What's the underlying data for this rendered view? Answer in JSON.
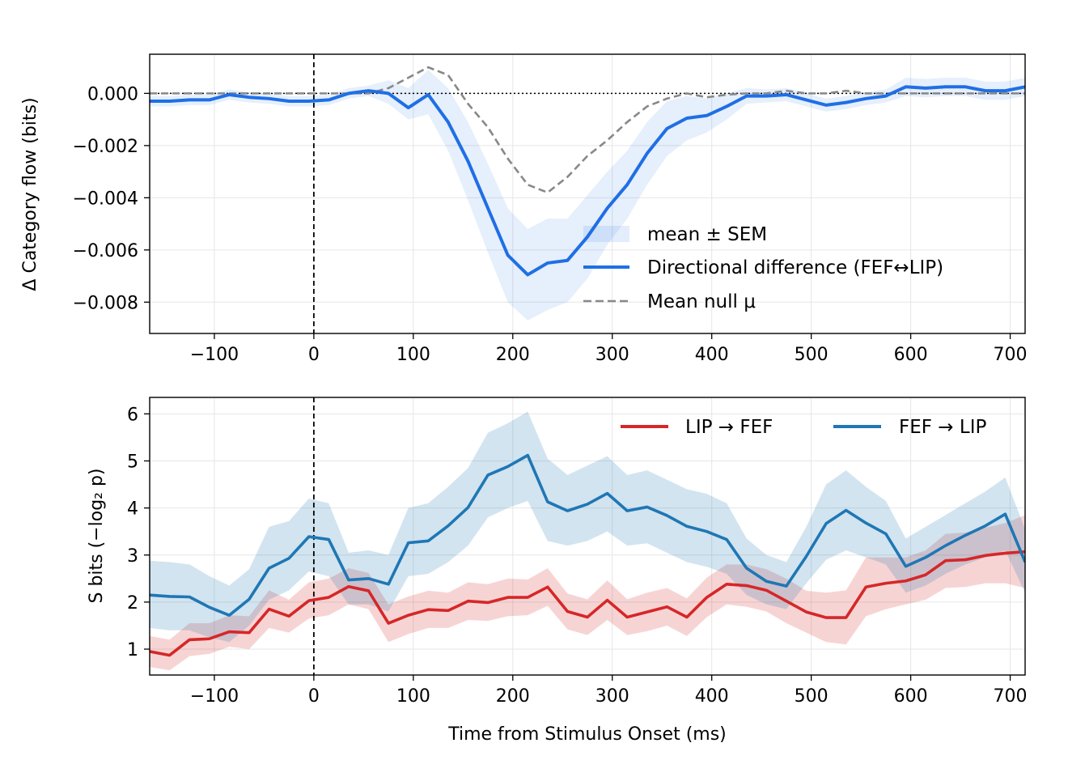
{
  "chart_data": [
    {
      "type": "line",
      "panel": "top",
      "title": "",
      "xlabel": "",
      "ylabel": "Δ Category flow (bits)",
      "xlim": [
        -165,
        715
      ],
      "ylim": [
        -0.0092,
        0.0015
      ],
      "xticks": [
        -100,
        0,
        100,
        200,
        300,
        400,
        500,
        600,
        700
      ],
      "xtick_labels": [
        "−100",
        "0",
        "100",
        "200",
        "300",
        "400",
        "500",
        "600",
        "700"
      ],
      "yticks": [
        0.0,
        -0.002,
        -0.004,
        -0.006,
        -0.008
      ],
      "ytick_labels": [
        "0.000",
        "−0.002",
        "−0.004",
        "−0.006",
        "−0.008"
      ],
      "grid": true,
      "legend_position": "lower-right",
      "legend": [
        "mean ± SEM",
        "Directional difference (FEF↔LIP)",
        "Mean null μ"
      ],
      "reference_lines": {
        "vertical_x": 0,
        "horizontal_y": 0
      },
      "x": [
        -165,
        -145,
        -125,
        -105,
        -85,
        -65,
        -45,
        -25,
        -5,
        15,
        35,
        55,
        75,
        95,
        115,
        135,
        155,
        175,
        195,
        215,
        235,
        255,
        275,
        295,
        315,
        335,
        355,
        375,
        395,
        415,
        435,
        455,
        475,
        495,
        515,
        535,
        555,
        575,
        595,
        615,
        635,
        655,
        675,
        695,
        715
      ],
      "series": [
        {
          "name": "Directional difference (FEF↔LIP)",
          "color": "#1f6fe5",
          "values": [
            -0.0003,
            -0.0003,
            -0.00025,
            -0.00025,
            -5e-05,
            -0.00015,
            -0.0002,
            -0.0003,
            -0.0003,
            -0.00025,
            0.0,
            0.0001,
            0.0,
            -0.00055,
            -5e-05,
            -0.0011,
            -0.0026,
            -0.0044,
            -0.0062,
            -0.00695,
            -0.0065,
            -0.0064,
            -0.0055,
            -0.0044,
            -0.0035,
            -0.0023,
            -0.00135,
            -0.00095,
            -0.00085,
            -0.0005,
            -0.0001,
            -0.0001,
            -5e-05,
            -0.00025,
            -0.00045,
            -0.00035,
            -0.0002,
            -0.0001,
            0.00025,
            0.0002,
            0.00025,
            0.00025,
            0.0001,
            0.0001,
            0.00025
          ],
          "sem_lower": [
            -0.0005,
            -0.0005,
            -0.00045,
            -0.00045,
            -0.00025,
            -0.00035,
            -0.0004,
            -0.0005,
            -0.0005,
            -0.00045,
            -0.0002,
            -0.0001,
            -0.0004,
            -0.001,
            -0.0008,
            -0.0022,
            -0.0041,
            -0.0061,
            -0.008,
            -0.0087,
            -0.0083,
            -0.008,
            -0.0071,
            -0.0058,
            -0.0048,
            -0.0035,
            -0.0024,
            -0.0018,
            -0.0015,
            -0.001,
            -0.0004,
            -0.00035,
            -0.0003,
            -0.0005,
            -0.0007,
            -0.0006,
            -0.00045,
            -0.00035,
            -0.0001,
            -0.00015,
            -0.0001,
            -0.0001,
            -0.00025,
            -0.00025,
            -0.0001
          ],
          "sem_upper": [
            -0.0001,
            -0.0001,
            -5e-05,
            -5e-05,
            0.00015,
            5e-05,
            0.0,
            -0.0001,
            -0.0001,
            -5e-05,
            0.0002,
            0.0003,
            0.0005,
            0.0002,
            0.0009,
            0.0002,
            -0.0011,
            -0.0027,
            -0.0044,
            -0.0052,
            -0.0048,
            -0.0048,
            -0.0039,
            -0.003,
            -0.0022,
            -0.0011,
            -0.0003,
            -0.0001,
            -0.0002,
            0.0,
            0.0002,
            0.00015,
            0.0002,
            0.0,
            -0.0002,
            -0.0001,
            5e-05,
            0.00015,
            0.0006,
            0.00055,
            0.0006,
            0.0006,
            0.00045,
            0.00045,
            0.0006
          ]
        },
        {
          "name": "Mean null μ",
          "color": "#888888",
          "dashed": true,
          "values": [
            0.0,
            0.0,
            0.0,
            0.0,
            0.0,
            0.0,
            0.0,
            0.0,
            0.0,
            0.0,
            0.0,
            0.0,
            0.0002,
            0.0006,
            0.001,
            0.0007,
            -0.0004,
            -0.0013,
            -0.0025,
            -0.0035,
            -0.0038,
            -0.0032,
            -0.0024,
            -0.0018,
            -0.0011,
            -0.0005,
            -0.0002,
            0.0,
            -0.00015,
            -5e-05,
            0.0,
            0.0,
            0.0001,
            0.0,
            0.0,
            0.0001,
            0.0,
            0.0,
            0.0,
            0.0,
            0.0,
            0.0,
            0.0,
            0.0,
            0.0
          ]
        }
      ]
    },
    {
      "type": "line",
      "panel": "bottom",
      "title": "",
      "xlabel": "Time from Stimulus Onset (ms)",
      "ylabel": "S bits (−log₂ p)",
      "xlim": [
        -165,
        715
      ],
      "ylim": [
        0.45,
        6.35
      ],
      "xticks": [
        -100,
        0,
        100,
        200,
        300,
        400,
        500,
        600,
        700
      ],
      "xtick_labels": [
        "−100",
        "0",
        "100",
        "200",
        "300",
        "400",
        "500",
        "600",
        "700"
      ],
      "yticks": [
        1,
        2,
        3,
        4,
        5,
        6
      ],
      "ytick_labels": [
        "1",
        "2",
        "3",
        "4",
        "5",
        "6"
      ],
      "grid": true,
      "legend_position": "upper-right",
      "legend": [
        "LIP → FEF",
        "FEF → LIP"
      ],
      "reference_lines": {
        "vertical_x": 0
      },
      "x": [
        -165,
        -145,
        -125,
        -105,
        -85,
        -65,
        -45,
        -25,
        -5,
        15,
        35,
        55,
        75,
        95,
        115,
        135,
        155,
        175,
        195,
        215,
        235,
        255,
        275,
        295,
        315,
        335,
        355,
        375,
        395,
        415,
        435,
        455,
        475,
        495,
        515,
        535,
        555,
        575,
        595,
        615,
        635,
        655,
        675,
        695,
        715
      ],
      "series": [
        {
          "name": "LIP → FEF",
          "color": "#d62728",
          "values": [
            0.95,
            0.87,
            1.2,
            1.22,
            1.37,
            1.35,
            1.85,
            1.7,
            2.03,
            2.1,
            2.33,
            2.24,
            1.55,
            1.72,
            1.84,
            1.82,
            2.02,
            1.99,
            2.1,
            2.1,
            2.32,
            1.8,
            1.68,
            2.04,
            1.68,
            1.79,
            1.9,
            1.68,
            2.1,
            2.38,
            2.35,
            2.25,
            2.02,
            1.79,
            1.67,
            1.67,
            2.32,
            2.4,
            2.45,
            2.58,
            2.88,
            2.9,
            2.99,
            3.04,
            3.07
          ],
          "sem_lower": [
            0.62,
            0.55,
            0.85,
            0.9,
            1.05,
            1.0,
            1.45,
            1.35,
            1.65,
            1.72,
            1.95,
            1.85,
            1.15,
            1.32,
            1.45,
            1.45,
            1.62,
            1.6,
            1.7,
            1.72,
            1.92,
            1.42,
            1.3,
            1.62,
            1.3,
            1.38,
            1.5,
            1.28,
            1.68,
            1.95,
            1.9,
            1.8,
            1.55,
            1.35,
            1.15,
            1.1,
            1.7,
            1.85,
            1.95,
            2.05,
            2.3,
            2.32,
            2.4,
            2.4,
            2.3
          ],
          "sem_upper": [
            1.28,
            1.2,
            1.55,
            1.55,
            1.72,
            1.7,
            2.25,
            2.05,
            2.42,
            2.5,
            2.72,
            2.62,
            1.95,
            2.12,
            2.24,
            2.2,
            2.42,
            2.38,
            2.5,
            2.48,
            2.72,
            2.18,
            2.06,
            2.46,
            2.06,
            2.2,
            2.3,
            2.08,
            2.52,
            2.8,
            2.8,
            2.7,
            2.5,
            2.24,
            2.2,
            2.25,
            2.95,
            2.95,
            2.95,
            3.1,
            3.45,
            3.48,
            3.58,
            3.68,
            3.85
          ]
        },
        {
          "name": "FEF → LIP",
          "color": "#1f77b4",
          "values": [
            2.15,
            2.12,
            2.11,
            1.89,
            1.72,
            2.06,
            2.72,
            2.93,
            3.39,
            3.33,
            2.47,
            2.5,
            2.38,
            3.26,
            3.3,
            3.62,
            4.01,
            4.7,
            4.88,
            5.12,
            4.13,
            3.94,
            4.08,
            4.31,
            3.94,
            4.02,
            3.84,
            3.61,
            3.5,
            3.33,
            2.72,
            2.44,
            2.34,
            2.97,
            3.67,
            3.95,
            3.68,
            3.45,
            2.76,
            2.95,
            3.2,
            3.42,
            3.62,
            3.87,
            2.85
          ],
          "sem_lower": [
            1.45,
            1.4,
            1.4,
            1.25,
            1.15,
            1.5,
            2.05,
            2.25,
            2.65,
            2.55,
            1.95,
            1.95,
            1.8,
            2.55,
            2.6,
            2.85,
            3.2,
            3.8,
            4.0,
            4.15,
            3.3,
            3.2,
            3.3,
            3.5,
            3.2,
            3.25,
            3.05,
            2.85,
            2.75,
            2.6,
            2.15,
            1.95,
            1.85,
            2.4,
            2.9,
            3.1,
            2.95,
            2.8,
            2.2,
            2.35,
            2.6,
            2.8,
            2.95,
            3.1,
            2.2
          ],
          "sem_upper": [
            2.88,
            2.85,
            2.8,
            2.55,
            2.35,
            2.7,
            3.6,
            3.72,
            4.2,
            4.1,
            3.05,
            3.1,
            3.0,
            4.0,
            4.1,
            4.45,
            4.85,
            5.6,
            5.8,
            6.05,
            5.05,
            4.7,
            4.9,
            5.1,
            4.7,
            4.8,
            4.6,
            4.4,
            4.3,
            4.1,
            3.35,
            3.0,
            2.85,
            3.6,
            4.5,
            4.8,
            4.45,
            4.15,
            3.35,
            3.6,
            3.85,
            4.1,
            4.35,
            4.65,
            3.55
          ]
        }
      ]
    }
  ]
}
